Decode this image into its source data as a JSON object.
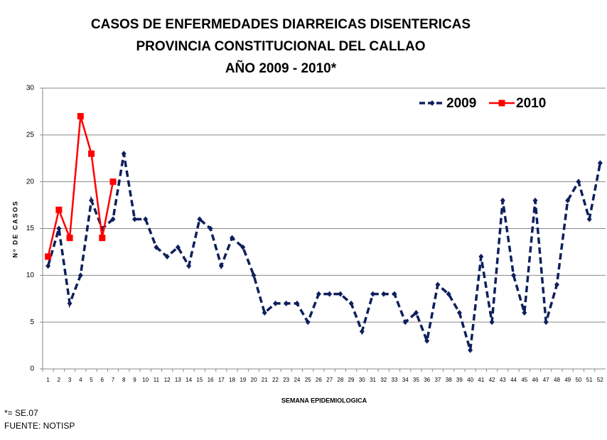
{
  "chart_data": {
    "type": "line",
    "title": [
      "CASOS DE ENFERMEDADES DIARREICAS  DISENTERICAS",
      "PROVINCIA CONSTITUCIONAL DEL CALLAO",
      "AÑO 2009 - 2010*"
    ],
    "x_label": "SEMANA EPIDEMIOLOGICA",
    "y_label": "Nº DE CASOS",
    "footnotes": [
      "*= SE.07",
      "FUENTE: NOTISP"
    ],
    "categories": [
      "1",
      "2",
      "3",
      "4",
      "5",
      "6",
      "7",
      "8",
      "9",
      "10",
      "11",
      "12",
      "13",
      "14",
      "15",
      "16",
      "17",
      "18",
      "19",
      "20",
      "21",
      "22",
      "23",
      "24",
      "25",
      "26",
      "27",
      "28",
      "29",
      "30",
      "31",
      "32",
      "33",
      "34",
      "35",
      "36",
      "37",
      "38",
      "39",
      "40",
      "41",
      "42",
      "43",
      "44",
      "45",
      "46",
      "47",
      "48",
      "49",
      "50",
      "51",
      "52"
    ],
    "series": [
      {
        "name": "2009",
        "color": "#0d1f5c",
        "dashed": true,
        "marker": "diamond",
        "values": [
          11,
          15,
          7,
          10,
          18,
          15,
          16,
          23,
          16,
          16,
          13,
          12,
          13,
          11,
          16,
          15,
          11,
          14,
          13,
          10,
          6,
          7,
          7,
          7,
          5,
          8,
          8,
          8,
          7,
          4,
          8,
          8,
          8,
          5,
          6,
          3,
          9,
          8,
          6,
          2,
          12,
          5,
          18,
          10,
          6,
          18,
          5,
          9,
          18,
          20,
          16,
          22
        ]
      },
      {
        "name": "2010",
        "color": "#ff0000",
        "dashed": false,
        "marker": "square",
        "values": [
          12,
          17,
          14,
          27,
          23,
          14,
          20,
          null,
          null,
          null,
          null,
          null,
          null,
          null,
          null,
          null,
          null,
          null,
          null,
          null,
          null,
          null,
          null,
          null,
          null,
          null,
          null,
          null,
          null,
          null,
          null,
          null,
          null,
          null,
          null,
          null,
          null,
          null,
          null,
          null,
          null,
          null,
          null,
          null,
          null,
          null,
          null,
          null,
          null,
          null,
          null,
          null
        ]
      }
    ],
    "ylim": [
      0,
      30
    ],
    "yticks": [
      0,
      5,
      10,
      15,
      20,
      25,
      30
    ],
    "grid": true,
    "legend": "top-right"
  }
}
